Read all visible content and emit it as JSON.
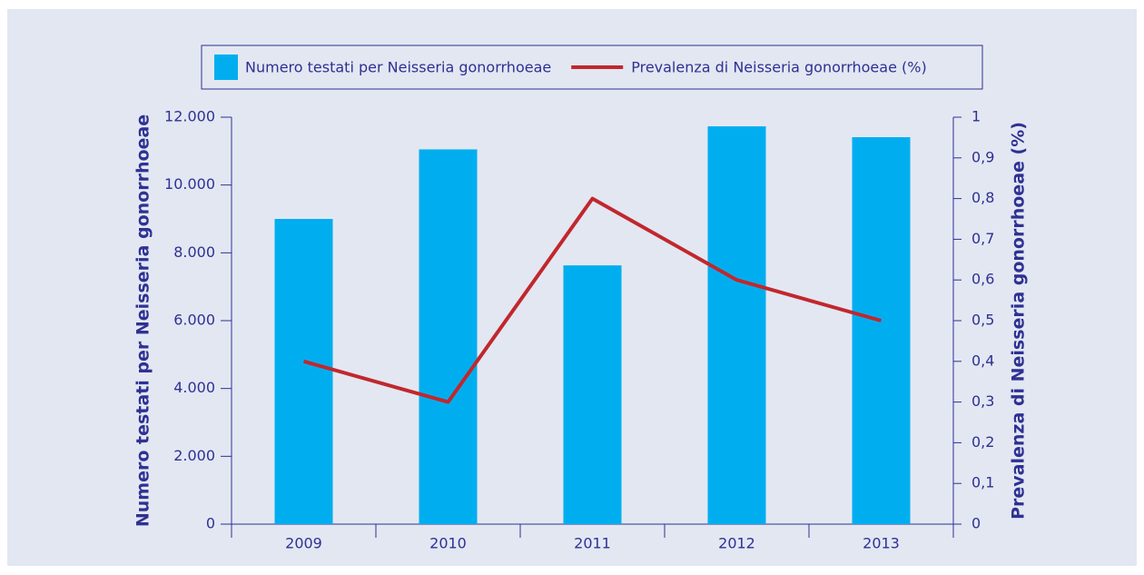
{
  "chart_data": {
    "type": "bar-line",
    "categories": [
      "2009",
      "2010",
      "2011",
      "2012",
      "2013"
    ],
    "series": [
      {
        "name": "Numero testati per Neisseria gonorrhoeae",
        "type": "bar",
        "color": "#00aeef",
        "values": [
          9000,
          11050,
          7630,
          11730,
          11410
        ]
      },
      {
        "name": "Prevalenza di Neisseria gonorrhoeae (%)",
        "type": "line",
        "color": "#c1272d",
        "axis": "y2",
        "values": [
          0.4,
          0.3,
          0.8,
          0.6,
          0.5
        ]
      }
    ],
    "y_label": "Numero testati per Neisseria gonorrhoeae",
    "y2_label": "Prevalenza di Neisseria gonorrhoeae (%)",
    "ylim": [
      0,
      12000
    ],
    "yticks": [
      0,
      {
        "value": 2000,
        "label": "2.000"
      },
      {
        "value": 4000,
        "label": "4.000"
      },
      {
        "value": 6000,
        "label": "6.000"
      },
      {
        "value": 8000,
        "label": "8.000"
      },
      {
        "value": 10000,
        "label": "10.000"
      },
      {
        "value": 12000,
        "label": "12.000"
      }
    ],
    "y2lim": [
      0,
      1
    ],
    "y2ticks": [
      0,
      {
        "value": 0.1,
        "label": "0,1"
      },
      {
        "value": 0.2,
        "label": "0,2"
      },
      {
        "value": 0.3,
        "label": "0,3"
      },
      {
        "value": 0.4,
        "label": "0,4"
      },
      {
        "value": 0.5,
        "label": "0,5"
      },
      {
        "value": 0.6,
        "label": "0,6"
      },
      {
        "value": 0.7,
        "label": "0,7"
      },
      {
        "value": 0.8,
        "label": "0,8"
      },
      {
        "value": 0.9,
        "label": "0,9"
      },
      1
    ],
    "legend": "top"
  }
}
